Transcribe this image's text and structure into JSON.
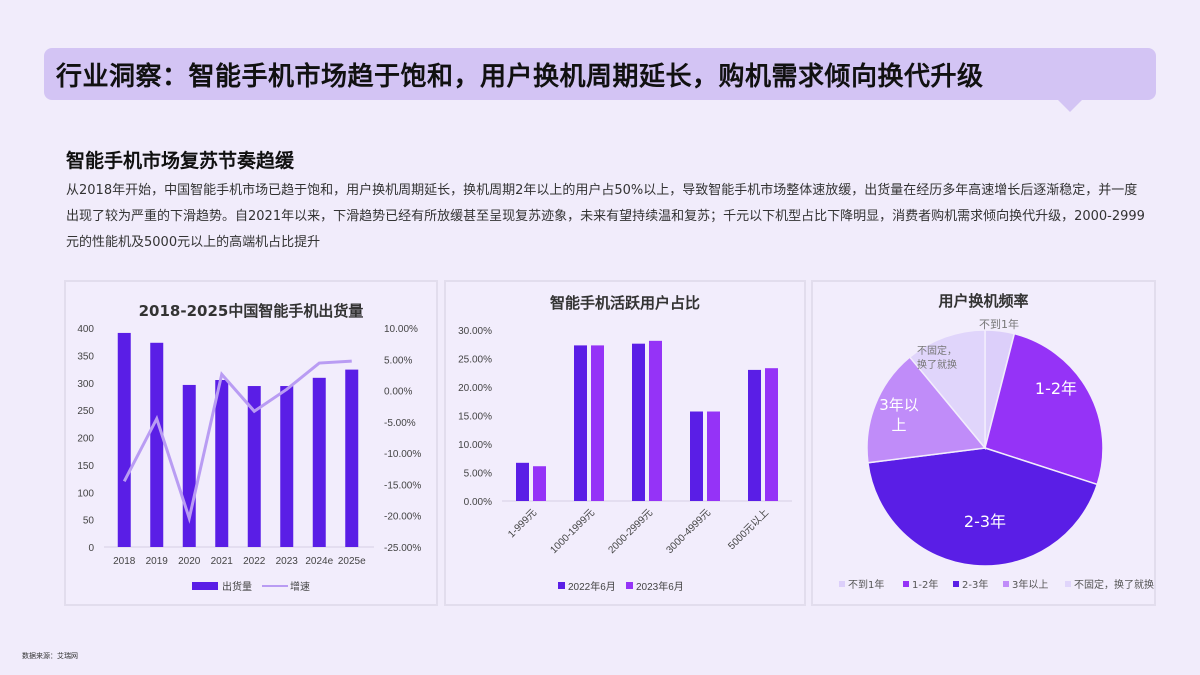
{
  "banner": {
    "title": "行业洞察：智能手机市场趋于饱和，用户换机周期延长，购机需求倾向换代升级"
  },
  "section": {
    "title": "智能手机市场复苏节奏趋缓",
    "body": "从2018年开始，中国智能手机市场已趋于饱和，用户换机周期延长，换机周期2年以上的用户占50%以上，导致智能手机市场整体速放缓，出货量在经历多年高速增长后逐渐稳定，并一度出现了较为严重的下滑趋势。自2021年以来，下滑趋势已经有所放缓甚至呈现复苏迹象，未来有望持续温和复苏；千元以下机型占比下降明显，消费者购机需求倾向换代升级，2000-2999元的性能机及5000元以上的高端机占比提升"
  },
  "source": "数据来源：艾瑞网",
  "colors": {
    "primary": "#5a1ee6",
    "secondary": "#9533f7",
    "line": "#b99cf3",
    "light": "#c08cf9",
    "pale": "#dccffa",
    "banner": "#d3c4f4",
    "background": "#f1ecfb"
  },
  "chart_data": [
    {
      "type": "bar+line",
      "title": "2018-2025中国智能手机出货量",
      "categories": [
        "2018",
        "2019",
        "2020",
        "2021",
        "2022",
        "2023",
        "2024e",
        "2025e"
      ],
      "series": [
        {
          "name": "出货量",
          "type": "bar",
          "axis": "left",
          "values": [
            391,
            373,
            296,
            305,
            294,
            294,
            309,
            324
          ]
        },
        {
          "name": "增速",
          "type": "line",
          "axis": "right",
          "values": [
            -14.5,
            -4.5,
            -20.4,
            2.6,
            -3.3,
            0.2,
            4.4,
            4.7
          ]
        }
      ],
      "left_axis": {
        "ticks": [
          "400",
          "350",
          "300",
          "250",
          "200",
          "150",
          "100",
          "50",
          "0"
        ],
        "ylim": [
          0,
          400
        ]
      },
      "right_axis": {
        "ticks": [
          "10.00%",
          "5.00%",
          "0.00%",
          "-5.00%",
          "-10.00%",
          "-15.00%",
          "-20.00%",
          "-25.00%"
        ],
        "ylim": [
          -25,
          10
        ]
      },
      "legend": [
        "出货量",
        "增速"
      ],
      "legend_position": "bottom",
      "grid": false
    },
    {
      "type": "bar",
      "title": "智能手机活跃用户占比",
      "categories": [
        "1-999元",
        "1000-1999元",
        "2000-2999元",
        "3000-4999元",
        "5000元以上"
      ],
      "series": [
        {
          "name": "2022年6月",
          "values": [
            6.7,
            27.3,
            27.6,
            15.7,
            23.0
          ]
        },
        {
          "name": "2023年6月",
          "values": [
            6.1,
            27.3,
            28.1,
            15.7,
            23.3
          ]
        }
      ],
      "y_axis": {
        "ticks": [
          "30.00%",
          "25.00%",
          "20.00%",
          "15.00%",
          "10.00%",
          "5.00%",
          "0.00%"
        ],
        "ylim": [
          0,
          30
        ]
      },
      "legend": [
        "2022年6月",
        "2023年6月"
      ],
      "legend_position": "bottom",
      "grid": false
    },
    {
      "type": "pie",
      "title": "用户换机频率",
      "slices": [
        {
          "label": "不到1年",
          "value": 4,
          "display": "不到1年"
        },
        {
          "label": "1-2年",
          "value": 26,
          "display": "1-2年"
        },
        {
          "label": "2-3年",
          "value": 43,
          "display": "2-3年"
        },
        {
          "label": "3年以上",
          "value": 16,
          "display": "3年以上"
        },
        {
          "label": "不固定，换了就换",
          "value": 11,
          "display": "不固定，换了就换"
        }
      ],
      "slice_label_lines": {
        "lt1": "不到1年",
        "y12": "1-2年",
        "y23": "2-3年",
        "gt3_a": "3年以",
        "gt3_b": "上",
        "free_a": "不固定，",
        "free_b": "换了就换"
      },
      "legend": [
        "不到1年",
        "1-2年",
        "2-3年",
        "3年以上",
        "不固定，换了就换"
      ],
      "legend_position": "bottom"
    }
  ]
}
